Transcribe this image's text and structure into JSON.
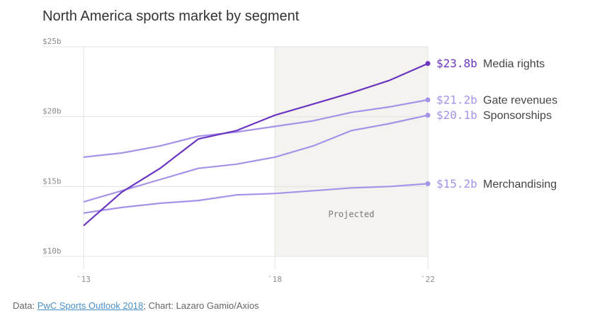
{
  "title": "North America sports market by segment",
  "chart_data": {
    "type": "line",
    "x": [
      2013,
      2014,
      2015,
      2016,
      2017,
      2018,
      2019,
      2020,
      2021,
      2022
    ],
    "x_tick_labels": [
      "`13",
      "`18",
      "`22"
    ],
    "x_ticks": [
      2013,
      2018,
      2022
    ],
    "y_tick_labels": [
      "$25b",
      "$20b",
      "$15b",
      "$10b"
    ],
    "y_ticks": [
      25,
      20,
      15,
      10
    ],
    "ylim": [
      10,
      25
    ],
    "xlim": [
      2013,
      2022
    ],
    "y_unit": "billions USD",
    "grid": true,
    "projected_region": {
      "from": 2018,
      "to": 2022,
      "label": "Projected"
    },
    "series": [
      {
        "name": "Media rights",
        "end_label": "$23.8b",
        "color": "#6a35c0",
        "values": [
          12.2,
          14.6,
          16.3,
          18.4,
          19.0,
          20.1,
          20.9,
          21.7,
          22.6,
          23.8
        ]
      },
      {
        "name": "Gate revenues",
        "end_label": "$21.2b",
        "color": "#a692e8",
        "values": [
          17.1,
          17.4,
          17.9,
          18.6,
          18.9,
          19.3,
          19.7,
          20.3,
          20.7,
          21.2
        ]
      },
      {
        "name": "Sponsorships",
        "end_label": "$20.1b",
        "color": "#a692e8",
        "values": [
          13.9,
          14.7,
          15.5,
          16.3,
          16.6,
          17.1,
          17.9,
          19.0,
          19.5,
          20.1
        ]
      },
      {
        "name": "Merchandising",
        "end_label": "$15.2b",
        "color": "#a692e8",
        "values": [
          13.1,
          13.5,
          13.8,
          14.0,
          14.4,
          14.5,
          14.7,
          14.9,
          15.0,
          15.2
        ]
      }
    ]
  },
  "footer": {
    "prefix": "Data: ",
    "link_text": "PwC Sports Outlook 2018",
    "suffix": "; Chart: Lazaro Gamio/Axios"
  }
}
